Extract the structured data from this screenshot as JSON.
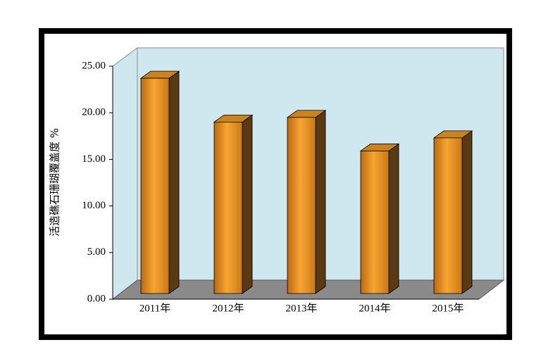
{
  "chart_data": {
    "type": "bar3d",
    "y_label": "活造礁石珊瑚覆盖度 %",
    "categories": [
      "2011年",
      "2012年",
      "2013年",
      "2014年",
      "2015年"
    ],
    "values": [
      23.1,
      18.4,
      18.9,
      15.3,
      16.7
    ],
    "color": "#f0a030",
    "ylim": [
      0,
      25
    ],
    "yticks": [
      {
        "value": 0,
        "label": "0.00"
      },
      {
        "value": 5,
        "label": "5.00"
      },
      {
        "value": 10,
        "label": "10.00"
      },
      {
        "value": 15,
        "label": "15.00"
      },
      {
        "value": 20,
        "label": "20.00"
      },
      {
        "value": 25,
        "label": "25.00"
      }
    ]
  }
}
